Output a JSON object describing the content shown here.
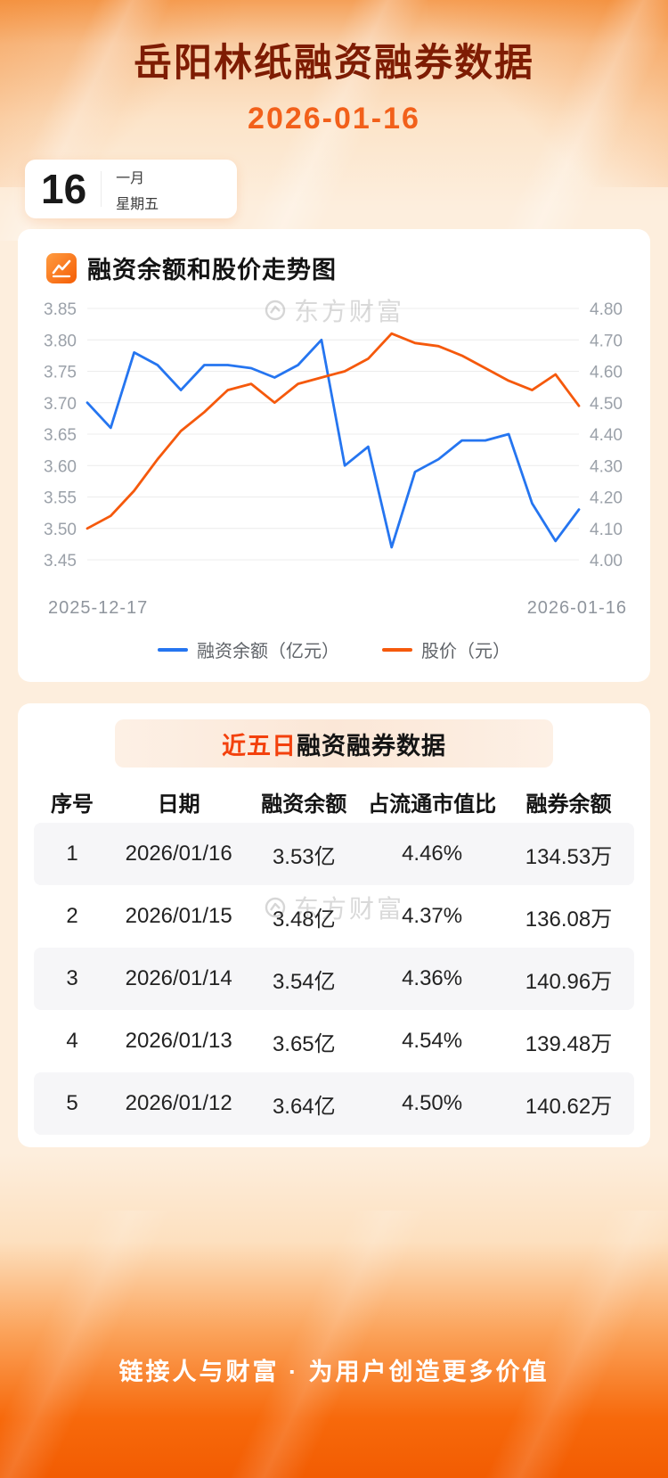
{
  "page": {
    "title": "岳阳林纸融资融券数据",
    "date": "2026-01-16",
    "watermark": "东方财富",
    "footer": "链接人与财富 · 为用户创造更多价值"
  },
  "calendar": {
    "day": "16",
    "month": "一月",
    "weekday": "星期五"
  },
  "chart_section": {
    "title": "融资余额和股价走势图"
  },
  "chart_data": {
    "type": "line",
    "title": "融资余额和股价走势图",
    "x_start_label": "2025-12-17",
    "x_end_label": "2026-01-16",
    "grid": true,
    "legend_position": "bottom",
    "left_axis": {
      "label": "融资余额（亿元）",
      "min": 3.45,
      "max": 3.85,
      "ticks": [
        "3.85",
        "3.80",
        "3.75",
        "3.70",
        "3.65",
        "3.60",
        "3.55",
        "3.50",
        "3.45"
      ]
    },
    "right_axis": {
      "label": "股价（元）",
      "min": 4.0,
      "max": 4.8,
      "ticks": [
        "4.80",
        "4.70",
        "4.60",
        "4.50",
        "4.40",
        "4.30",
        "4.20",
        "4.10",
        "4.00"
      ]
    },
    "series": [
      {
        "name": "融资余额（亿元）",
        "axis": "left",
        "color": "#2575f0",
        "values": [
          3.7,
          3.66,
          3.78,
          3.76,
          3.72,
          3.76,
          3.76,
          3.755,
          3.74,
          3.76,
          3.8,
          3.6,
          3.63,
          3.47,
          3.59,
          3.61,
          3.64,
          3.64,
          3.65,
          3.54,
          3.48,
          3.53
        ]
      },
      {
        "name": "股价（元）",
        "axis": "right",
        "color": "#f5590c",
        "values": [
          4.1,
          4.14,
          4.22,
          4.32,
          4.41,
          4.47,
          4.54,
          4.56,
          4.5,
          4.56,
          4.58,
          4.6,
          4.64,
          4.72,
          4.69,
          4.68,
          4.65,
          4.61,
          4.57,
          4.54,
          4.59,
          4.49
        ]
      }
    ]
  },
  "table_section": {
    "title_highlight": "近五日",
    "title_rest": "融资融券数据",
    "columns": [
      "序号",
      "日期",
      "融资余额",
      "占流通市值比",
      "融券余额"
    ],
    "rows": [
      [
        "1",
        "2026/01/16",
        "3.53亿",
        "4.46%",
        "134.53万"
      ],
      [
        "2",
        "2026/01/15",
        "3.48亿",
        "4.37%",
        "136.08万"
      ],
      [
        "3",
        "2026/01/14",
        "3.54亿",
        "4.36%",
        "140.96万"
      ],
      [
        "4",
        "2026/01/13",
        "3.65亿",
        "4.54%",
        "139.48万"
      ],
      [
        "5",
        "2026/01/12",
        "3.64亿",
        "4.50%",
        "140.62万"
      ]
    ]
  },
  "colors": {
    "accent": "#f25c02",
    "title": "#7e1c03",
    "date": "#f2601a",
    "blue_series": "#2575f0",
    "orange_series": "#f5590c",
    "alt_row": "#f6f6f8"
  }
}
